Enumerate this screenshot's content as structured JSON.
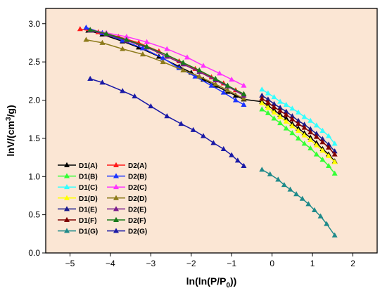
{
  "chart_data": {
    "type": "line",
    "title": "",
    "xlabel": "ln(ln(P/P0))",
    "ylabel": "lnV/(cm3/g)",
    "xlim": [
      -5.6,
      2.6
    ],
    "ylim": [
      0,
      3.2
    ],
    "xticks": [
      -5,
      -4,
      -3,
      -2,
      -1,
      0,
      1,
      2
    ],
    "yticks": [
      0.0,
      0.5,
      1.0,
      1.5,
      2.0,
      2.5,
      3.0
    ],
    "xtick_labels": [
      "−5",
      "−4",
      "−3",
      "−2",
      "−1",
      "0",
      "1",
      "2"
    ],
    "ytick_labels": [
      "0.0",
      "0.5",
      "1.0",
      "1.5",
      "2.0",
      "2.5",
      "3.0"
    ],
    "background_color": "#FBE6D4",
    "grid": false,
    "legend_position": "lower-left",
    "series": [
      {
        "name": "D1(A)",
        "color": "#000000",
        "marker": "triangle",
        "x": [
          -4.55,
          -4.2,
          -3.7,
          -3.3,
          -2.8,
          -2.3,
          -2.0,
          -1.7,
          -1.4,
          -1.1,
          -0.9,
          -0.7,
          -0.25,
          -0.1,
          0.05,
          0.2,
          0.35,
          0.5,
          0.65,
          0.8,
          0.95,
          1.1,
          1.25,
          1.4,
          1.55
        ],
        "y": [
          2.91,
          2.86,
          2.77,
          2.69,
          2.57,
          2.44,
          2.36,
          2.27,
          2.19,
          2.11,
          2.06,
          2.01,
          1.98,
          1.93,
          1.87,
          1.81,
          1.76,
          1.69,
          1.63,
          1.57,
          1.51,
          1.44,
          1.36,
          1.29,
          1.2
        ]
      },
      {
        "name": "D1(B)",
        "color": "#33FF33",
        "marker": "triangle",
        "x": [
          -0.25,
          -0.1,
          0.05,
          0.2,
          0.35,
          0.5,
          0.65,
          0.8,
          0.95,
          1.1,
          1.25,
          1.4,
          1.55
        ],
        "y": [
          1.88,
          1.83,
          1.76,
          1.7,
          1.63,
          1.57,
          1.5,
          1.43,
          1.37,
          1.29,
          1.22,
          1.14,
          1.04
        ]
      },
      {
        "name": "D1(C)",
        "color": "#33FFFF",
        "marker": "triangle",
        "x": [
          -0.25,
          -0.1,
          0.05,
          0.2,
          0.35,
          0.5,
          0.65,
          0.8,
          0.95,
          1.1,
          1.25,
          1.4,
          1.55
        ],
        "y": [
          2.14,
          2.09,
          2.04,
          1.98,
          1.94,
          1.89,
          1.84,
          1.78,
          1.73,
          1.67,
          1.6,
          1.53,
          1.43
        ]
      },
      {
        "name": "D1(D)",
        "color": "#FFFF00",
        "marker": "triangle",
        "x": [
          -0.25,
          -0.1,
          0.05,
          0.2,
          0.35,
          0.5,
          0.65,
          0.8,
          0.95,
          1.1,
          1.25,
          1.4,
          1.55
        ],
        "y": [
          1.96,
          1.9,
          1.84,
          1.78,
          1.72,
          1.66,
          1.6,
          1.54,
          1.48,
          1.41,
          1.34,
          1.27,
          1.19
        ]
      },
      {
        "name": "D1(E)",
        "color": "#1A1A8C",
        "marker": "triangle",
        "x": [
          -0.25,
          -0.1,
          0.05,
          0.2,
          0.35,
          0.5,
          0.65,
          0.8,
          0.95,
          1.1,
          1.25,
          1.4,
          1.55
        ],
        "y": [
          2.06,
          2.01,
          1.95,
          1.9,
          1.85,
          1.79,
          1.73,
          1.68,
          1.62,
          1.56,
          1.49,
          1.42,
          1.33
        ]
      },
      {
        "name": "D1(F)",
        "color": "#800000",
        "marker": "triangle",
        "x": [
          -0.25,
          -0.1,
          0.05,
          0.2,
          0.35,
          0.5,
          0.65,
          0.8,
          0.95,
          1.1,
          1.25,
          1.4,
          1.55
        ],
        "y": [
          2.02,
          1.97,
          1.91,
          1.86,
          1.81,
          1.75,
          1.69,
          1.64,
          1.58,
          1.52,
          1.45,
          1.38,
          1.29
        ]
      },
      {
        "name": "D1(G)",
        "color": "#1F8A8A",
        "marker": "triangle",
        "x": [
          -0.25,
          -0.05,
          0.15,
          0.3,
          0.45,
          0.6,
          0.75,
          0.9,
          1.05,
          1.2,
          1.35,
          1.55
        ],
        "y": [
          1.09,
          1.03,
          0.96,
          0.89,
          0.83,
          0.77,
          0.71,
          0.64,
          0.56,
          0.48,
          0.38,
          0.23
        ]
      },
      {
        "name": "D2(A)",
        "color": "#FF1A1A",
        "marker": "triangle",
        "x": [
          -4.75,
          -4.3,
          -3.8,
          -3.3,
          -2.8,
          -2.3,
          -1.9,
          -1.5,
          -1.2,
          -0.9,
          -0.7
        ],
        "y": [
          2.93,
          2.89,
          2.83,
          2.75,
          2.64,
          2.51,
          2.41,
          2.3,
          2.22,
          2.13,
          2.08
        ]
      },
      {
        "name": "D2(B)",
        "color": "#1A33FF",
        "marker": "triangle",
        "x": [
          -4.6,
          -4.2,
          -3.7,
          -3.2,
          -2.7,
          -2.3,
          -1.9,
          -1.5,
          -1.2,
          -0.9,
          -0.7
        ],
        "y": [
          2.95,
          2.88,
          2.78,
          2.68,
          2.55,
          2.42,
          2.31,
          2.19,
          2.1,
          2.0,
          1.94
        ]
      },
      {
        "name": "D2(C)",
        "color": "#FF33FF",
        "marker": "triangle",
        "x": [
          -4.5,
          -4.1,
          -3.6,
          -3.1,
          -2.6,
          -2.1,
          -1.7,
          -1.3,
          -1.0,
          -0.7
        ],
        "y": [
          2.92,
          2.88,
          2.83,
          2.76,
          2.67,
          2.56,
          2.45,
          2.35,
          2.27,
          2.19
        ]
      },
      {
        "name": "D2(D)",
        "color": "#8C7A1A",
        "marker": "triangle",
        "x": [
          -4.6,
          -4.2,
          -3.7,
          -3.2,
          -2.7,
          -2.2,
          -1.8,
          -1.4,
          -1.1,
          -0.7
        ],
        "y": [
          2.79,
          2.75,
          2.67,
          2.6,
          2.5,
          2.39,
          2.31,
          2.21,
          2.13,
          2.02
        ]
      },
      {
        "name": "D2(E)",
        "color": "#7A1A8C",
        "marker": "triangle",
        "x": [
          -4.5,
          -4.1,
          -3.6,
          -3.1,
          -2.6,
          -2.2,
          -1.8,
          -1.4,
          -1.1,
          -0.7
        ],
        "y": [
          2.91,
          2.86,
          2.78,
          2.69,
          2.57,
          2.47,
          2.37,
          2.26,
          2.18,
          2.06
        ]
      },
      {
        "name": "D2(F)",
        "color": "#1A7A1A",
        "marker": "triangle",
        "x": [
          -4.5,
          -4.1,
          -3.6,
          -3.1,
          -2.6,
          -2.2,
          -1.8,
          -1.4,
          -1.1,
          -0.7
        ],
        "y": [
          2.92,
          2.87,
          2.79,
          2.7,
          2.59,
          2.49,
          2.39,
          2.28,
          2.19,
          2.08
        ]
      },
      {
        "name": "D2(G)",
        "color": "#1A1AA6",
        "marker": "triangle",
        "x": [
          -4.5,
          -4.2,
          -3.7,
          -3.4,
          -3.0,
          -2.6,
          -2.25,
          -1.95,
          -1.7,
          -1.45,
          -1.2,
          -1.0,
          -0.85,
          -0.7
        ],
        "y": [
          2.28,
          2.23,
          2.12,
          2.05,
          1.92,
          1.79,
          1.69,
          1.61,
          1.53,
          1.44,
          1.36,
          1.28,
          1.21,
          1.14
        ]
      }
    ]
  }
}
